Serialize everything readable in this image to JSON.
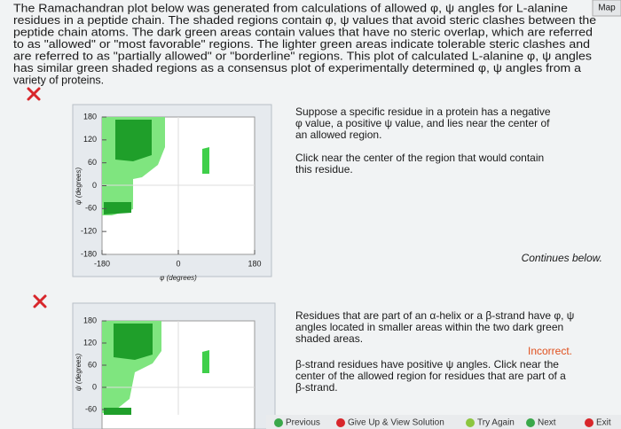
{
  "map_tab": "Map",
  "intro": {
    "lines": [
      "The Ramachandran plot below was generated from calculations of allowed φ, ψ angles for L-alanine",
      "residues in a peptide chain. The shaded regions contain φ, ψ values that avoid steric clashes between the",
      "peptide chain atoms. The dark green areas contain values that have no steric overlap, which are referred",
      "to as \"allowed\" or \"most favorable\" regions. The lighter green areas indicate tolerable steric clashes and",
      "are referred to as \"partially allowed\" or \"borderline\" regions. This plot of calculated L-alanine φ, ψ angles",
      "has similar green shaded regions as a consensus plot of experimentally determined φ, ψ angles from a",
      "variety of proteins."
    ]
  },
  "plots": [
    {
      "yticks": [
        180,
        120,
        60,
        0,
        -60,
        -120,
        -180
      ],
      "ylim": [
        -180,
        180
      ],
      "xticks": [
        -180,
        0,
        180
      ],
      "xlim": [
        -180,
        180
      ],
      "y_label": "ψ (degrees)",
      "x_label": "φ (degrees)"
    },
    {
      "yticks": [
        180,
        120,
        60,
        0,
        -60
      ],
      "ylim": [
        -180,
        180
      ],
      "y_label": "ψ (degrees)"
    }
  ],
  "question1": {
    "prompt": [
      "Suppose a specific residue in a protein has a negative",
      "φ value, a positive ψ value, and lies near the center of",
      "an allowed region."
    ],
    "instruction": [
      "Click near the center of the region that would contain",
      "this residue."
    ]
  },
  "continues": "Continues below.",
  "question2": {
    "prompt": [
      "Residues that are part of an α-helix or a β-strand have φ, ψ",
      "angles located in smaller areas within the two dark green",
      "shaded areas."
    ],
    "feedback": "Incorrect.",
    "hint": [
      "β-strand residues have positive ψ angles. Click near the",
      "center of the allowed region for residues that are part of a",
      "β-strand."
    ]
  },
  "nav": [
    "Previous",
    "Give Up & View Solution",
    "Try Again",
    "Next",
    "Exit"
  ]
}
